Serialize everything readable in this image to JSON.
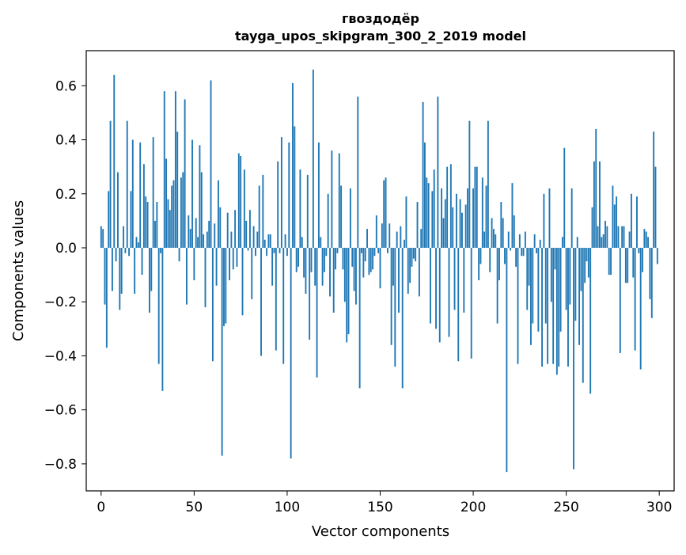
{
  "chart_data": {
    "type": "bar",
    "title": "гвоздодёр",
    "subtitle": "tayga_upos_skipgram_300_2_2019 model",
    "xlabel": "Vector components",
    "ylabel": "Components values",
    "xlim": [
      -8,
      308
    ],
    "ylim": [
      -0.9,
      0.73
    ],
    "xticks": [
      0,
      50,
      100,
      150,
      200,
      250,
      300
    ],
    "xtick_labels": [
      "0",
      "50",
      "100",
      "150",
      "200",
      "250",
      "300"
    ],
    "yticks": [
      -0.8,
      -0.6,
      -0.4,
      -0.2,
      0.0,
      0.2,
      0.4,
      0.6
    ],
    "ytick_labels": [
      "−0.8",
      "−0.6",
      "−0.4",
      "−0.2",
      "0.0",
      "0.2",
      "0.4",
      "0.6"
    ],
    "grid": false,
    "bar_color": "#1f77b4",
    "values": [
      0.08,
      0.07,
      -0.21,
      -0.37,
      0.21,
      0.47,
      -0.16,
      0.64,
      -0.05,
      0.28,
      -0.23,
      -0.17,
      0.08,
      -0.02,
      0.47,
      -0.03,
      0.21,
      0.4,
      -0.17,
      0.04,
      0.02,
      0.39,
      -0.1,
      0.31,
      0.19,
      0.17,
      -0.24,
      -0.16,
      0.41,
      0.1,
      0.17,
      -0.43,
      -0.02,
      -0.53,
      0.58,
      0.33,
      0.18,
      0.14,
      0.23,
      0.25,
      0.58,
      0.43,
      -0.05,
      0.26,
      0.28,
      0.55,
      -0.21,
      0.12,
      0.07,
      0.4,
      -0.12,
      0.11,
      0.04,
      0.38,
      0.28,
      0.05,
      -0.22,
      0.06,
      0.1,
      0.62,
      -0.42,
      0.09,
      -0.14,
      0.25,
      0.15,
      -0.77,
      -0.29,
      -0.28,
      0.13,
      -0.12,
      0.06,
      -0.08,
      0.14,
      -0.07,
      0.35,
      0.34,
      -0.25,
      0.29,
      0.1,
      -0.01,
      0.14,
      -0.19,
      0.08,
      -0.03,
      0.06,
      0.23,
      -0.4,
      0.27,
      0.03,
      -0.03,
      0.05,
      0.05,
      -0.14,
      -0.02,
      -0.38,
      0.32,
      -0.02,
      0.41,
      -0.43,
      0.05,
      -0.03,
      0.39,
      -0.78,
      0.61,
      0.45,
      -0.09,
      -0.07,
      0.29,
      0.04,
      -0.11,
      -0.17,
      0.27,
      -0.34,
      -0.09,
      0.66,
      -0.14,
      -0.48,
      0.39,
      0.04,
      -0.14,
      -0.09,
      -0.03,
      0.2,
      -0.18,
      0.36,
      -0.24,
      -0.08,
      -0.02,
      0.35,
      0.23,
      -0.08,
      -0.2,
      -0.35,
      -0.32,
      0.22,
      -0.07,
      -0.16,
      -0.21,
      0.56,
      -0.52,
      -0.02,
      -0.11,
      -0.05,
      0.07,
      -0.1,
      -0.09,
      -0.08,
      -0.03,
      0.12,
      -0.02,
      -0.15,
      0.09,
      0.25,
      0.26,
      -0.02,
      0.09,
      -0.36,
      -0.14,
      -0.44,
      0.06,
      -0.24,
      0.08,
      -0.52,
      0.03,
      0.19,
      -0.17,
      -0.13,
      -0.07,
      -0.04,
      -0.05,
      0.17,
      -0.18,
      0.07,
      0.54,
      0.39,
      0.26,
      0.24,
      -0.28,
      0.21,
      0.29,
      -0.3,
      0.56,
      -0.35,
      0.22,
      0.11,
      0.18,
      0.3,
      -0.33,
      0.31,
      0.15,
      -0.23,
      0.2,
      -0.42,
      0.18,
      0.13,
      -0.24,
      0.16,
      0.22,
      0.47,
      -0.41,
      0.22,
      0.3,
      0.3,
      -0.12,
      -0.06,
      0.26,
      0.06,
      0.23,
      0.47,
      -0.09,
      0.11,
      0.07,
      0.05,
      -0.28,
      -0.12,
      0.17,
      0.11,
      -0.06,
      -0.83,
      0.06,
      -0.01,
      0.24,
      0.12,
      -0.07,
      -0.43,
      0.05,
      -0.03,
      -0.03,
      0.06,
      -0.23,
      -0.14,
      -0.36,
      -0.28,
      0.05,
      -0.02,
      -0.31,
      0.03,
      -0.44,
      0.2,
      -0.28,
      -0.43,
      0.22,
      -0.2,
      -0.43,
      -0.08,
      -0.47,
      -0.44,
      -0.31,
      0.04,
      0.37,
      -0.23,
      -0.44,
      -0.21,
      0.22,
      -0.82,
      -0.27,
      0.04,
      -0.36,
      -0.16,
      -0.5,
      -0.13,
      -0.05,
      -0.11,
      -0.54,
      0.15,
      0.32,
      0.44,
      0.08,
      0.32,
      0.04,
      0.05,
      0.1,
      0.08,
      -0.1,
      -0.1,
      0.23,
      0.16,
      0.19,
      0.08,
      -0.39,
      0.08,
      0.08,
      -0.13,
      -0.13,
      0.06,
      0.2,
      -0.11,
      -0.38,
      0.19,
      -0.02,
      -0.45,
      -0.09,
      0.07,
      0.06,
      0.04,
      -0.19,
      -0.26,
      0.43,
      0.3,
      -0.06
    ]
  }
}
